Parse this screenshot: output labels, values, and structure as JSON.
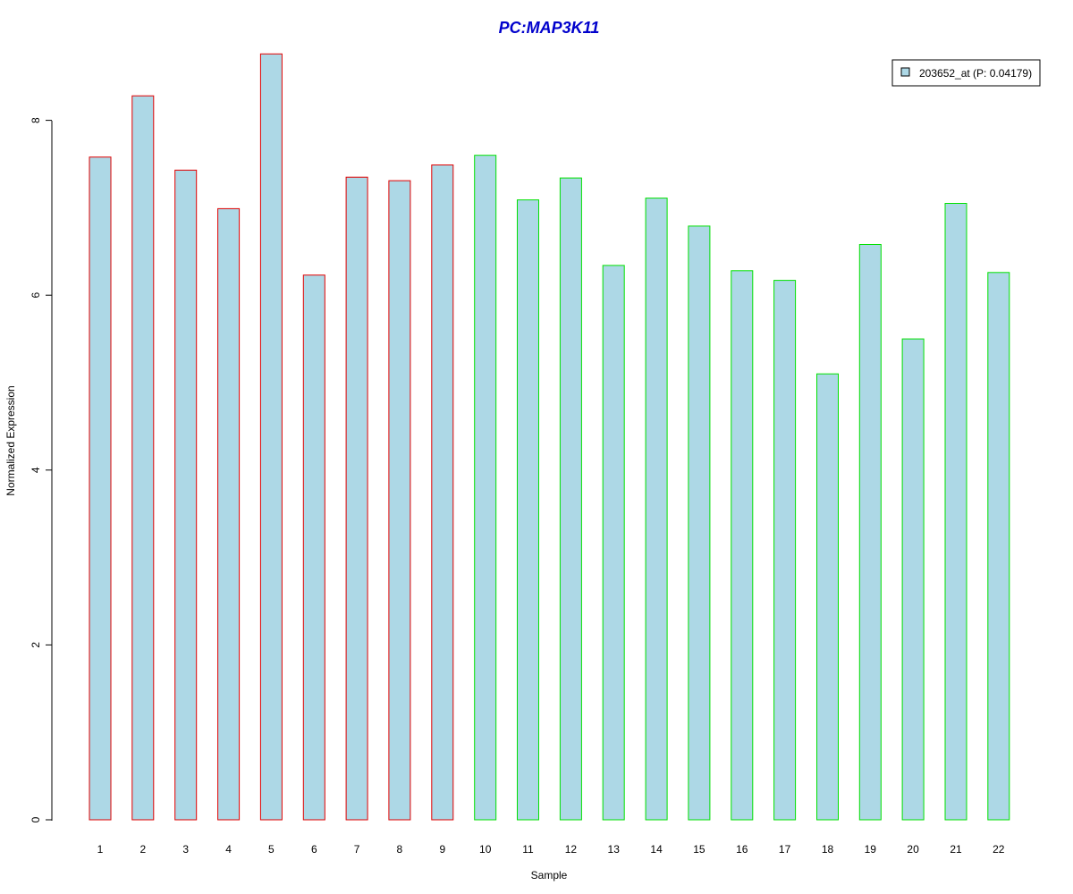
{
  "chart_data": {
    "type": "bar",
    "title": "PC:MAP3K11",
    "title_color": "#0000CC",
    "xlabel": "Sample",
    "ylabel": "Normalized Expression",
    "categories": [
      "1",
      "2",
      "3",
      "4",
      "5",
      "6",
      "7",
      "8",
      "9",
      "10",
      "11",
      "12",
      "13",
      "14",
      "15",
      "16",
      "17",
      "18",
      "19",
      "20",
      "21",
      "22"
    ],
    "series": [
      {
        "name": "203652_at (P: 0.04179)",
        "values": [
          7.58,
          8.28,
          7.43,
          6.99,
          8.76,
          6.23,
          7.35,
          7.31,
          7.49,
          7.6,
          7.09,
          7.34,
          6.34,
          7.11,
          6.79,
          6.28,
          6.17,
          5.1,
          6.58,
          5.5,
          7.05,
          6.26
        ],
        "fill": "#ADD8E6",
        "group": [
          "a",
          "a",
          "a",
          "a",
          "a",
          "a",
          "a",
          "a",
          "a",
          "b",
          "b",
          "b",
          "b",
          "b",
          "b",
          "b",
          "b",
          "b",
          "b",
          "b",
          "b",
          "b"
        ]
      }
    ],
    "group_colors": {
      "a": "#E00000",
      "b": "#00E000"
    },
    "ylim": [
      0,
      8.8
    ],
    "yticks": [
      "0",
      "2",
      "4",
      "6",
      "8"
    ],
    "grid": false,
    "legend_position": "top-right"
  }
}
